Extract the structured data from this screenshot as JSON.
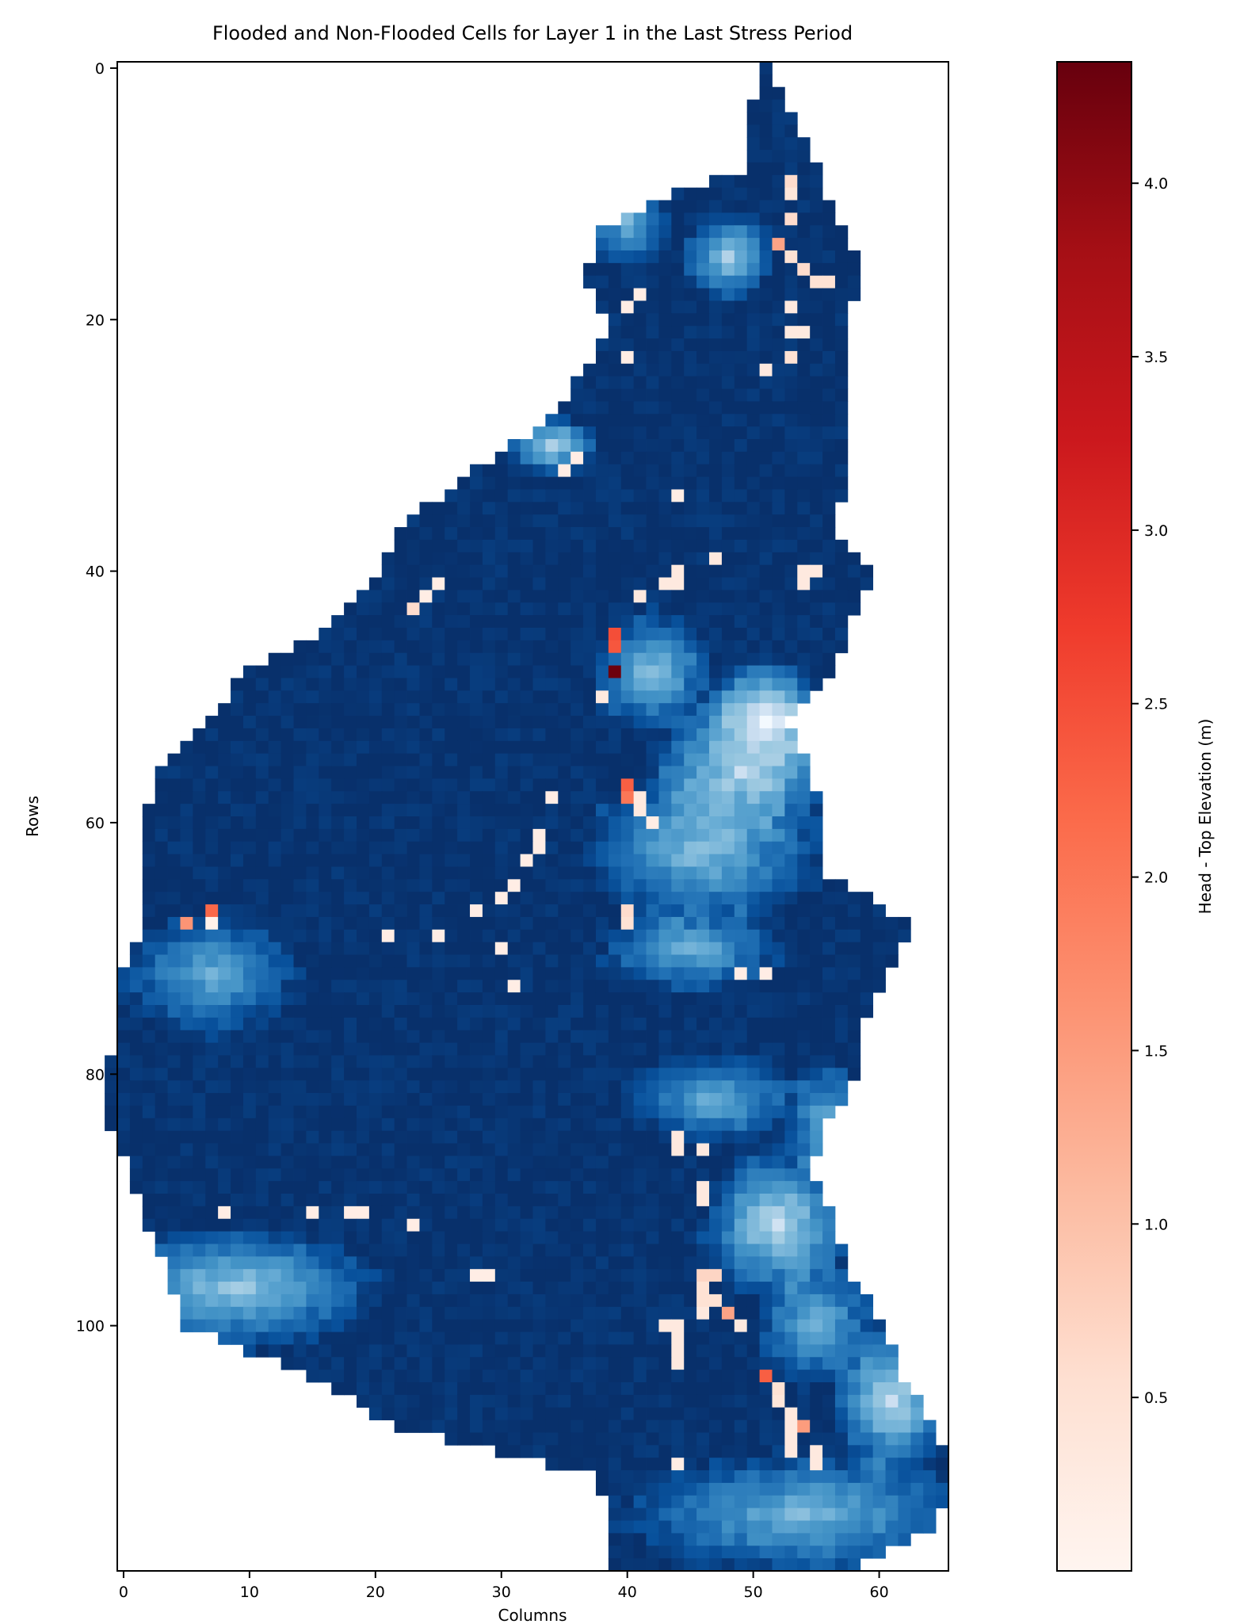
{
  "colors": {
    "not_flooded_ramp": [
      "#f7fbff",
      "#deebf7",
      "#c6dbef",
      "#9ecae1",
      "#6baed6",
      "#4292c6",
      "#2171b5",
      "#08519c",
      "#08306b"
    ],
    "flooded_ramp": [
      "#fff5f0",
      "#fee0d2",
      "#fcbba1",
      "#fc9272",
      "#fb6a4a",
      "#ef3b2c",
      "#cb181d",
      "#a50f15",
      "#67000d"
    ]
  },
  "chart_data": {
    "type": "heatmap",
    "title": "Flooded and Non-Flooded Cells for Layer 1 in the Last Stress Period",
    "xlabel": "Columns",
    "ylabel": "Rows",
    "x_ticks": [
      0,
      10,
      20,
      30,
      40,
      50,
      60
    ],
    "y_ticks": [
      0,
      20,
      40,
      60,
      80,
      100
    ],
    "xlim": [
      -0.5,
      65.5
    ],
    "ylim": [
      119.5,
      -0.5
    ],
    "grid": false,
    "colorbar": {
      "label": "Head - Top Elevation (m)",
      "ticks": [
        "0.5",
        "1.0",
        "1.5",
        "2.0",
        "2.5",
        "3.0",
        "3.5",
        "4.0"
      ],
      "tick_values": [
        0.5,
        1.0,
        1.5,
        2.0,
        2.5,
        3.0,
        3.5,
        4.0
      ],
      "range": [
        0.0,
        4.35
      ],
      "colormap": "Reds"
    },
    "domain_extent_by_row": [
      [
        0,
        51,
        51
      ],
      [
        5,
        50,
        53
      ],
      [
        8,
        50,
        55
      ],
      [
        10,
        44,
        55
      ],
      [
        13,
        38,
        57
      ],
      [
        17,
        37,
        58
      ],
      [
        20,
        39,
        57
      ],
      [
        24,
        37,
        57
      ],
      [
        28,
        34,
        57
      ],
      [
        32,
        28,
        57
      ],
      [
        37,
        22,
        56
      ],
      [
        40,
        21,
        59
      ],
      [
        45,
        16,
        57
      ],
      [
        48,
        10,
        56
      ],
      [
        52,
        7,
        52
      ],
      [
        56,
        3,
        54
      ],
      [
        60,
        2,
        55
      ],
      [
        64,
        2,
        55
      ],
      [
        68,
        2,
        62
      ],
      [
        72,
        0,
        60
      ],
      [
        76,
        0,
        58
      ],
      [
        80,
        -1,
        58
      ],
      [
        84,
        -1,
        55
      ],
      [
        88,
        1,
        54
      ],
      [
        92,
        2,
        56
      ],
      [
        96,
        4,
        57
      ],
      [
        100,
        5,
        60
      ],
      [
        104,
        15,
        61
      ],
      [
        108,
        22,
        64
      ],
      [
        112,
        38,
        65
      ],
      [
        116,
        39,
        64
      ],
      [
        119,
        39,
        58
      ]
    ],
    "shallow_zones": [
      {
        "row": 12,
        "col": 40,
        "rr": 3,
        "rc": 3,
        "level": 0.45
      },
      {
        "row": 15,
        "col": 48,
        "rr": 3,
        "rc": 3,
        "level": 0.35
      },
      {
        "row": 30,
        "col": 34,
        "rr": 2,
        "rc": 3,
        "level": 0.3
      },
      {
        "row": 48,
        "col": 42,
        "rr": 4,
        "rc": 4,
        "level": 0.4
      },
      {
        "row": 52,
        "col": 51,
        "rr": 4,
        "rc": 4,
        "level": 0.0
      },
      {
        "row": 56,
        "col": 49,
        "rr": 5,
        "rc": 6,
        "level": 0.3
      },
      {
        "row": 62,
        "col": 46,
        "rr": 5,
        "rc": 8,
        "level": 0.4
      },
      {
        "row": 70,
        "col": 45,
        "rr": 3,
        "rc": 6,
        "level": 0.45
      },
      {
        "row": 72,
        "col": 7,
        "rr": 4,
        "rc": 6,
        "level": 0.5
      },
      {
        "row": 82,
        "col": 47,
        "rr": 3,
        "rc": 6,
        "level": 0.5
      },
      {
        "row": 84,
        "col": 56,
        "rr": 4,
        "rc": 3,
        "level": 0.45
      },
      {
        "row": 92,
        "col": 52,
        "rr": 5,
        "rc": 5,
        "level": 0.25
      },
      {
        "row": 97,
        "col": 9,
        "rr": 4,
        "rc": 9,
        "level": 0.35
      },
      {
        "row": 100,
        "col": 55,
        "rr": 4,
        "rc": 4,
        "level": 0.45
      },
      {
        "row": 106,
        "col": 61,
        "rr": 5,
        "rc": 4,
        "level": 0.25
      },
      {
        "row": 115,
        "col": 54,
        "rr": 4,
        "rc": 12,
        "level": 0.45
      }
    ],
    "flooded_cells": [
      [
        6,
        55,
        0.4
      ],
      [
        6,
        56,
        0.5
      ],
      [
        7,
        58,
        0.3
      ],
      [
        9,
        53,
        0.6
      ],
      [
        10,
        53,
        0.4
      ],
      [
        12,
        53,
        0.6
      ],
      [
        14,
        52,
        1.4
      ],
      [
        15,
        53,
        0.5
      ],
      [
        16,
        54,
        0.6
      ],
      [
        17,
        55,
        0.5
      ],
      [
        17,
        56,
        0.5
      ],
      [
        19,
        53,
        0.3
      ],
      [
        21,
        53,
        0.3
      ],
      [
        21,
        54,
        0.3
      ],
      [
        23,
        53,
        0.5
      ],
      [
        24,
        51,
        0.3
      ],
      [
        19,
        40,
        0.2
      ],
      [
        18,
        41,
        0.2
      ],
      [
        23,
        40,
        0.2
      ],
      [
        32,
        35,
        0.2
      ],
      [
        31,
        36,
        0.2
      ],
      [
        34,
        44,
        0.2
      ],
      [
        39,
        47,
        0.3
      ],
      [
        40,
        54,
        0.3
      ],
      [
        40,
        55,
        0.3
      ],
      [
        41,
        54,
        0.3
      ],
      [
        40,
        44,
        0.3
      ],
      [
        41,
        44,
        0.3
      ],
      [
        41,
        43,
        0.3
      ],
      [
        42,
        41,
        0.3
      ],
      [
        42,
        24,
        0.2
      ],
      [
        41,
        25,
        0.2
      ],
      [
        43,
        23,
        0.6
      ],
      [
        45,
        39,
        2.5
      ],
      [
        46,
        39,
        2.4
      ],
      [
        48,
        39,
        4.3
      ],
      [
        50,
        38,
        0.3
      ],
      [
        57,
        40,
        2.3
      ],
      [
        58,
        40,
        2.0
      ],
      [
        58,
        41,
        0.3
      ],
      [
        59,
        41,
        0.3
      ],
      [
        60,
        42,
        0.2
      ],
      [
        58,
        34,
        0.2
      ],
      [
        61,
        33,
        0.2
      ],
      [
        62,
        33,
        0.2
      ],
      [
        63,
        32,
        0.2
      ],
      [
        65,
        31,
        0.2
      ],
      [
        66,
        30,
        0.2
      ],
      [
        67,
        28,
        0.2
      ],
      [
        67,
        40,
        0.6
      ],
      [
        68,
        40,
        0.5
      ],
      [
        67,
        7,
        2.2
      ],
      [
        68,
        5,
        1.6
      ],
      [
        68,
        7,
        0.1
      ],
      [
        69,
        21,
        0.2
      ],
      [
        69,
        25,
        0.2
      ],
      [
        70,
        30,
        0.2
      ],
      [
        73,
        31,
        0.2
      ],
      [
        72,
        49,
        0.2
      ],
      [
        72,
        51,
        0.2
      ],
      [
        85,
        44,
        0.3
      ],
      [
        86,
        44,
        0.3
      ],
      [
        86,
        46,
        0.3
      ],
      [
        89,
        46,
        0.3
      ],
      [
        90,
        46,
        0.3
      ],
      [
        91,
        8,
        0.2
      ],
      [
        91,
        15,
        0.2
      ],
      [
        91,
        18,
        0.2
      ],
      [
        91,
        19,
        0.2
      ],
      [
        92,
        23,
        0.2
      ],
      [
        96,
        28,
        0.2
      ],
      [
        96,
        29,
        0.2
      ],
      [
        96,
        46,
        0.7
      ],
      [
        96,
        47,
        0.7
      ],
      [
        97,
        46,
        0.5
      ],
      [
        98,
        46,
        0.5
      ],
      [
        98,
        47,
        0.5
      ],
      [
        99,
        46,
        0.3
      ],
      [
        99,
        48,
        1.4
      ],
      [
        100,
        43,
        0.3
      ],
      [
        100,
        44,
        0.3
      ],
      [
        100,
        49,
        0.3
      ],
      [
        101,
        44,
        0.3
      ],
      [
        102,
        44,
        0.3
      ],
      [
        103,
        44,
        0.3
      ],
      [
        104,
        51,
        2.3
      ],
      [
        105,
        52,
        0.5
      ],
      [
        106,
        52,
        0.4
      ],
      [
        107,
        53,
        0.3
      ],
      [
        108,
        53,
        0.3
      ],
      [
        109,
        53,
        0.3
      ],
      [
        108,
        54,
        1.5
      ],
      [
        110,
        55,
        0.3
      ],
      [
        110,
        53,
        0.3
      ],
      [
        111,
        55,
        0.3
      ],
      [
        111,
        44,
        0.2
      ]
    ]
  }
}
